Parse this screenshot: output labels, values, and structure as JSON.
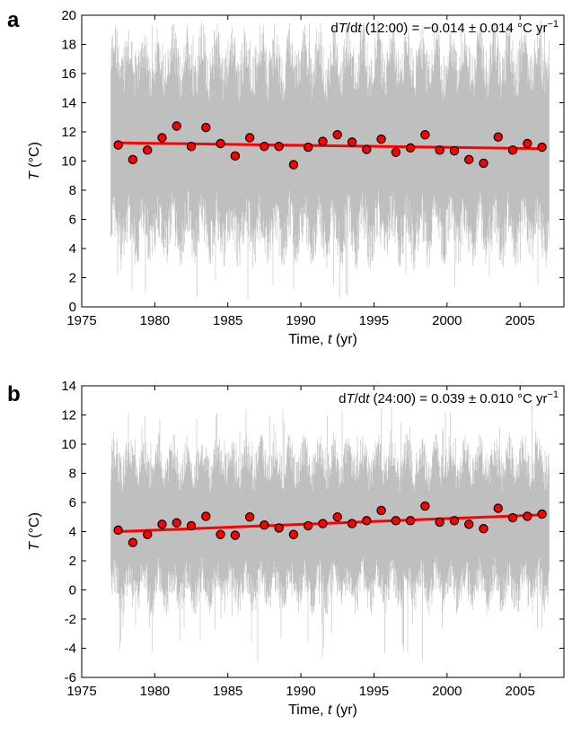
{
  "chart_data": [
    {
      "type": "scatter",
      "panel_label": "a",
      "annotation": {
        "prefix": "d",
        "T": "T",
        "mid": "/d",
        "t": "t",
        "rest": " (12:00) = −0.014 ± 0.014 °C yr",
        "sup": "−1"
      },
      "xlabel": {
        "main": "Time, ",
        "italic": "t",
        "unit": " (yr)"
      },
      "ylabel": {
        "italic": "T",
        "unit": " (°C)"
      },
      "xlim": [
        1975,
        2008
      ],
      "ylim": [
        0,
        20
      ],
      "xticks": [
        1975,
        1980,
        1985,
        1990,
        1995,
        2000,
        2005
      ],
      "yticks": [
        0,
        2,
        4,
        6,
        8,
        10,
        12,
        14,
        16,
        18,
        20
      ],
      "grid": false,
      "colors": {
        "background_series": "#bfbfbf",
        "trend": "#ff0000",
        "points": "#ff0000",
        "point_edge": "#000000"
      },
      "trend": {
        "x": [
          1977.5,
          2006.5
        ],
        "y": [
          11.25,
          10.85
        ]
      },
      "annual_means": {
        "x": [
          1977.5,
          1978.5,
          1979.5,
          1980.5,
          1981.5,
          1982.5,
          1983.5,
          1984.5,
          1985.5,
          1986.5,
          1987.5,
          1988.5,
          1989.5,
          1990.5,
          1991.5,
          1992.5,
          1993.5,
          1994.5,
          1995.5,
          1996.5,
          1997.5,
          1998.5,
          1999.5,
          2000.5,
          2001.5,
          2002.5,
          2003.5,
          2004.5,
          2005.5,
          2006.5
        ],
        "y": [
          11.1,
          10.1,
          10.75,
          11.6,
          12.4,
          11.0,
          12.3,
          11.2,
          10.35,
          11.6,
          11.0,
          11.0,
          9.75,
          10.95,
          11.35,
          11.8,
          11.3,
          10.8,
          11.5,
          10.6,
          10.9,
          11.8,
          10.75,
          10.7,
          10.1,
          9.85,
          11.65,
          10.75,
          11.2,
          10.95
        ]
      },
      "hourly_band": {
        "x_range": [
          1977,
          2007
        ],
        "envelope_low": 2.5,
        "envelope_high": 17.5,
        "min": 0.3,
        "max": 19.8,
        "center": 11.1
      }
    },
    {
      "type": "scatter",
      "panel_label": "b",
      "annotation": {
        "prefix": "d",
        "T": "T",
        "mid": "/d",
        "t": "t",
        "rest": " (24:00) = 0.039 ± 0.010 °C yr",
        "sup": "−1"
      },
      "xlabel": {
        "main": "Time, ",
        "italic": "t",
        "unit": " (yr)"
      },
      "ylabel": {
        "italic": "T",
        "unit": " (°C)"
      },
      "xlim": [
        1975,
        2008
      ],
      "ylim": [
        -6,
        14
      ],
      "xticks": [
        1975,
        1980,
        1985,
        1990,
        1995,
        2000,
        2005
      ],
      "yticks": [
        -6,
        -4,
        -2,
        0,
        2,
        4,
        6,
        8,
        10,
        12,
        14
      ],
      "grid": false,
      "colors": {
        "background_series": "#bfbfbf",
        "trend": "#ff0000",
        "points": "#ff0000",
        "point_edge": "#000000"
      },
      "trend": {
        "x": [
          1977.5,
          2006.5
        ],
        "y": [
          4.0,
          5.15
        ]
      },
      "annual_means": {
        "x": [
          1977.5,
          1978.5,
          1979.5,
          1980.5,
          1981.5,
          1982.5,
          1983.5,
          1984.5,
          1985.5,
          1986.5,
          1987.5,
          1988.5,
          1989.5,
          1990.5,
          1991.5,
          1992.5,
          1993.5,
          1994.5,
          1995.5,
          1996.5,
          1997.5,
          1998.5,
          1999.5,
          2000.5,
          2001.5,
          2002.5,
          2003.5,
          2004.5,
          2005.5,
          2006.5
        ],
        "y": [
          4.1,
          3.25,
          3.8,
          4.5,
          4.6,
          4.4,
          5.05,
          3.8,
          3.75,
          5.0,
          4.45,
          4.25,
          3.8,
          4.4,
          4.55,
          5.0,
          4.55,
          4.75,
          5.45,
          4.75,
          4.75,
          5.75,
          4.65,
          4.75,
          4.5,
          4.2,
          5.6,
          4.95,
          5.05,
          5.2
        ]
      },
      "hourly_band": {
        "x_range": [
          1977,
          2007
        ],
        "envelope_low": -1.5,
        "envelope_high": 9.5,
        "min": -5.0,
        "max": 12.8,
        "center": 4.5
      }
    }
  ]
}
